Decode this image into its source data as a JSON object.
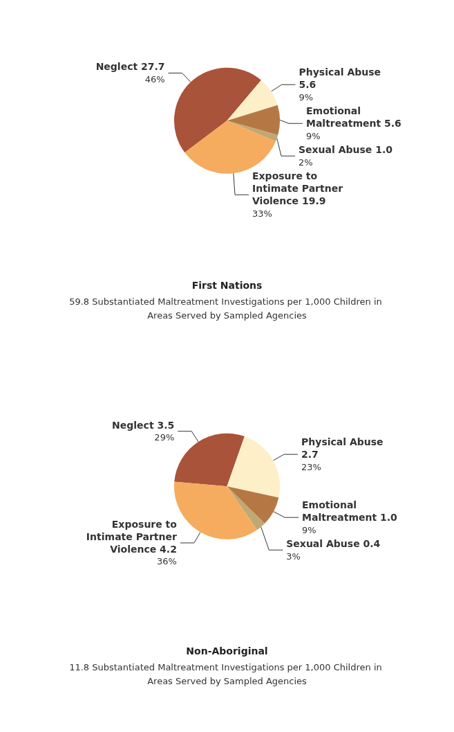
{
  "chart_data": [
    {
      "type": "pie",
      "title": "First Nations",
      "subtitle": "59.8 Substantiated Maltreatment Investigations per 1,000 Children in Areas Served by Sampled Agencies",
      "categories": [
        "Neglect 27.7",
        "Physical Abuse 5.6",
        "Emotional Maltreatment 5.6",
        "Sexual Abuse 1.0",
        "Exposure to Intimate Partner Violence 19.9"
      ],
      "values": [
        46,
        9,
        9,
        2,
        33
      ],
      "value_labels": [
        "46%",
        "9%",
        "9%",
        "2%",
        "33%"
      ],
      "colors": [
        "#a9533a",
        "#fdf0c8",
        "#b57844",
        "#c0a874",
        "#f5ac5e"
      ]
    },
    {
      "type": "pie",
      "title": "Non-Aboriginal",
      "subtitle": "11.8 Substantiated Maltreatment Investigations per 1,000 Children in Areas Served by Sampled Agencies",
      "categories": [
        "Neglect 3.5",
        "Physical Abuse 2.7",
        "Emotional Maltreatment 1.0",
        "Sexual Abuse 0.4",
        "Exposure to Intimate Partner Violence 4.2"
      ],
      "values": [
        29,
        23,
        9,
        3,
        36
      ],
      "value_labels": [
        "29%",
        "23%",
        "9%",
        "3%",
        "36%"
      ],
      "colors": [
        "#a9533a",
        "#fdf0c8",
        "#b57844",
        "#c0a874",
        "#f5ac5e"
      ]
    }
  ]
}
